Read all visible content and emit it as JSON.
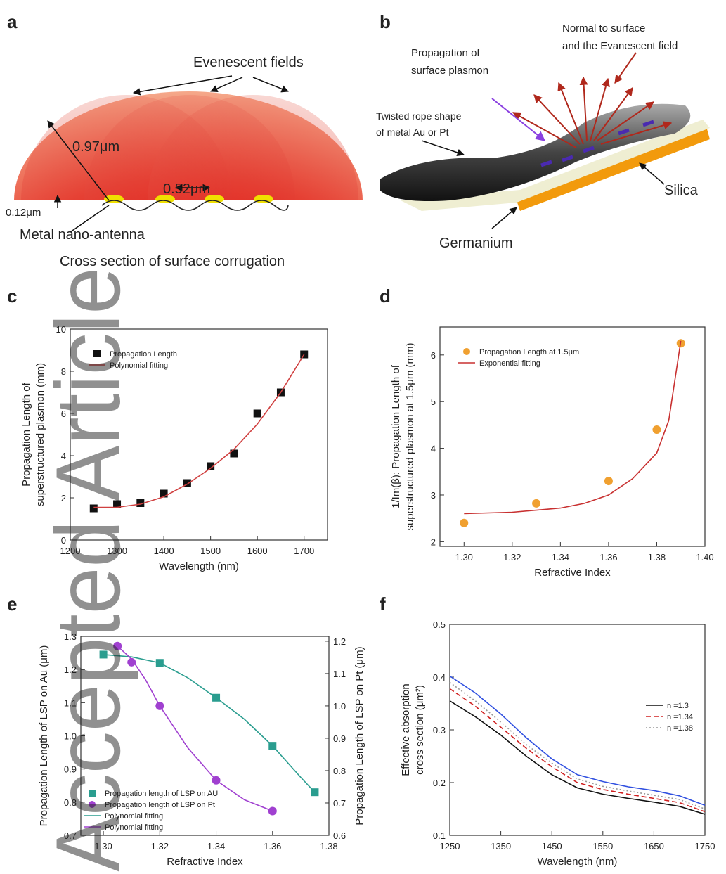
{
  "watermark": "Accepted Article",
  "panels": {
    "a": {
      "label": "a",
      "evanescent": "Evenescent fields",
      "radius": "0.97μm",
      "period": "0.52μm",
      "height": "0.12μm",
      "antenna": "Metal nano-antenna",
      "caption": "Cross section of surface corrugation"
    },
    "b": {
      "label": "b",
      "normal": [
        "Normal to surface",
        "and the Evanescent field"
      ],
      "propagation": [
        "Propagation of",
        "surface plasmon"
      ],
      "rope": [
        "Twisted rope shape",
        "of metal Au or Pt"
      ],
      "silica": "Silica",
      "germanium": "Germanium"
    }
  },
  "chart_data": [
    {
      "type": "scatter",
      "panel_label": "c",
      "xlabel": "Wavelength (nm)",
      "ylabel": [
        "Propagation Length of",
        "superstructured plasmon (mm)"
      ],
      "x": [
        1250,
        1300,
        1350,
        1400,
        1450,
        1500,
        1550,
        1600,
        1650,
        1700
      ],
      "series": [
        {
          "name": "Propagation Length",
          "color": "#111111",
          "kind": "points",
          "marker": "square",
          "values": [
            1.5,
            1.7,
            1.75,
            2.2,
            2.7,
            3.5,
            4.1,
            6.0,
            7.0,
            8.8
          ]
        },
        {
          "name": "Polynomial fitting",
          "color": "#d04040",
          "kind": "line",
          "values": [
            1.55,
            1.55,
            1.7,
            2.05,
            2.65,
            3.4,
            4.3,
            5.5,
            7.0,
            8.8
          ]
        }
      ],
      "xlim": [
        1200,
        1750
      ],
      "xticks": [
        1200,
        1300,
        1400,
        1500,
        1600,
        1700
      ],
      "ylim": [
        0,
        10
      ],
      "yticks": [
        0,
        2,
        4,
        6,
        8,
        10
      ],
      "legend": "upper left"
    },
    {
      "type": "scatter",
      "panel_label": "d",
      "xlabel": "Refractive Index",
      "ylabel": [
        "1/Im(β): Propagation Length of",
        "superstructured plasmon at 1.5μm (mm)"
      ],
      "series": [
        {
          "name": "Propagation Length at 1.5μm",
          "color": "#f0a030",
          "kind": "points",
          "marker": "circle",
          "x": [
            1.3,
            1.33,
            1.36,
            1.38,
            1.39
          ],
          "values": [
            2.4,
            2.82,
            3.3,
            4.4,
            6.25
          ]
        },
        {
          "name": "Exponential fitting",
          "color": "#c83030",
          "kind": "line",
          "x": [
            1.3,
            1.32,
            1.34,
            1.35,
            1.36,
            1.37,
            1.38,
            1.385,
            1.39
          ],
          "values": [
            2.6,
            2.63,
            2.72,
            2.82,
            3.0,
            3.35,
            3.9,
            4.6,
            6.3
          ]
        }
      ],
      "xlim": [
        1.29,
        1.4
      ],
      "xticks": [
        {
          "value": 1.3,
          "label": "1.30"
        },
        1.32,
        1.34,
        1.36,
        1.38,
        {
          "value": 1.4,
          "label": "1.40"
        }
      ],
      "ylim": [
        1.9,
        6.6
      ],
      "yticks": [
        2,
        3,
        4,
        5,
        6
      ],
      "legend": "upper left"
    },
    {
      "type": "scatter",
      "panel_label": "e",
      "xlabel": "Refractive Index",
      "ylabel": "Propagation Length of LSP on Au (μm)",
      "y2label": "Propagation Length of LSP on Pt (μm)",
      "y2color": "#a040d0",
      "series": [
        {
          "name": "Propagation length of LSP on AU",
          "color": "#2a9d8f",
          "kind": "points",
          "marker": "square",
          "x": [
            1.3,
            1.32,
            1.34,
            1.36,
            1.375
          ],
          "values": [
            1.245,
            1.22,
            1.115,
            0.97,
            0.83
          ]
        },
        {
          "name": "Propagation length of LSP on Pt",
          "color": "#a040d0",
          "kind": "points",
          "marker": "circle",
          "axis": "y2",
          "x": [
            1.305,
            1.31,
            1.32,
            1.34,
            1.36
          ],
          "values": [
            1.185,
            1.135,
            1.0,
            0.77,
            0.675
          ]
        },
        {
          "name": "Polynomial fitting",
          "color": "#2a9d8f",
          "kind": "line",
          "x": [
            1.3,
            1.31,
            1.32,
            1.33,
            1.34,
            1.35,
            1.36,
            1.37,
            1.375
          ],
          "values": [
            1.245,
            1.238,
            1.22,
            1.175,
            1.115,
            1.05,
            0.97,
            0.875,
            0.83
          ]
        },
        {
          "name": "Polynomial fitting",
          "color": "#a040d0",
          "kind": "line",
          "axis": "y2",
          "x": [
            1.305,
            1.31,
            1.315,
            1.32,
            1.33,
            1.34,
            1.35,
            1.36
          ],
          "values": [
            1.185,
            1.145,
            1.08,
            1.0,
            0.87,
            0.77,
            0.71,
            0.675
          ]
        }
      ],
      "xlim": [
        1.292,
        1.38
      ],
      "xticks": [
        {
          "value": 1.3,
          "label": "1.30"
        },
        1.32,
        1.34,
        1.36,
        1.38
      ],
      "ylim": [
        0.7,
        1.3
      ],
      "yticks": [
        0.7,
        0.8,
        0.9,
        {
          "value": 1,
          "label": "1.0"
        },
        1.1,
        1.2,
        1.3
      ],
      "y2lim": [
        0.6,
        1.215
      ],
      "y2ticks": [
        0.6,
        0.7,
        0.8,
        0.9,
        {
          "value": 1,
          "label": "1.0"
        },
        1.1,
        1.2
      ],
      "legend": "lower left"
    },
    {
      "type": "line",
      "panel_label": "f",
      "xlabel": "Wavelength (nm)",
      "ylabel": [
        "Effective absorption",
        "cross section (μm²)"
      ],
      "x": [
        1250,
        1300,
        1350,
        1400,
        1450,
        1500,
        1550,
        1600,
        1650,
        1700,
        1750
      ],
      "series": [
        {
          "name": "n =1.3",
          "color": "#111111",
          "kind": "line",
          "values": [
            0.355,
            0.325,
            0.29,
            0.25,
            0.215,
            0.19,
            0.178,
            0.17,
            0.163,
            0.155,
            0.14
          ]
        },
        {
          "name": "n =1.34",
          "color": "#d02020",
          "kind": "line",
          "dash": "dashed",
          "values": [
            0.378,
            0.345,
            0.305,
            0.265,
            0.23,
            0.2,
            0.187,
            0.178,
            0.17,
            0.162,
            0.145
          ]
        },
        {
          "name": "n =1.38",
          "color": "#999999",
          "kind": "line",
          "dash": "dotted",
          "values": [
            0.39,
            0.355,
            0.315,
            0.272,
            0.237,
            0.207,
            0.193,
            0.184,
            0.176,
            0.168,
            0.15
          ]
        },
        {
          "color": "#3050e0",
          "kind": "line",
          "values": [
            0.402,
            0.37,
            0.33,
            0.285,
            0.245,
            0.215,
            0.202,
            0.192,
            0.185,
            0.175,
            0.157
          ]
        }
      ],
      "xlim": [
        1250,
        1750
      ],
      "xticks": [
        1250,
        1350,
        1450,
        1550,
        1650,
        1750
      ],
      "ylim": [
        0.1,
        0.5
      ],
      "yticks": [
        0.1,
        0.2,
        0.3,
        0.4,
        0.5
      ],
      "legend": "upper right"
    }
  ]
}
